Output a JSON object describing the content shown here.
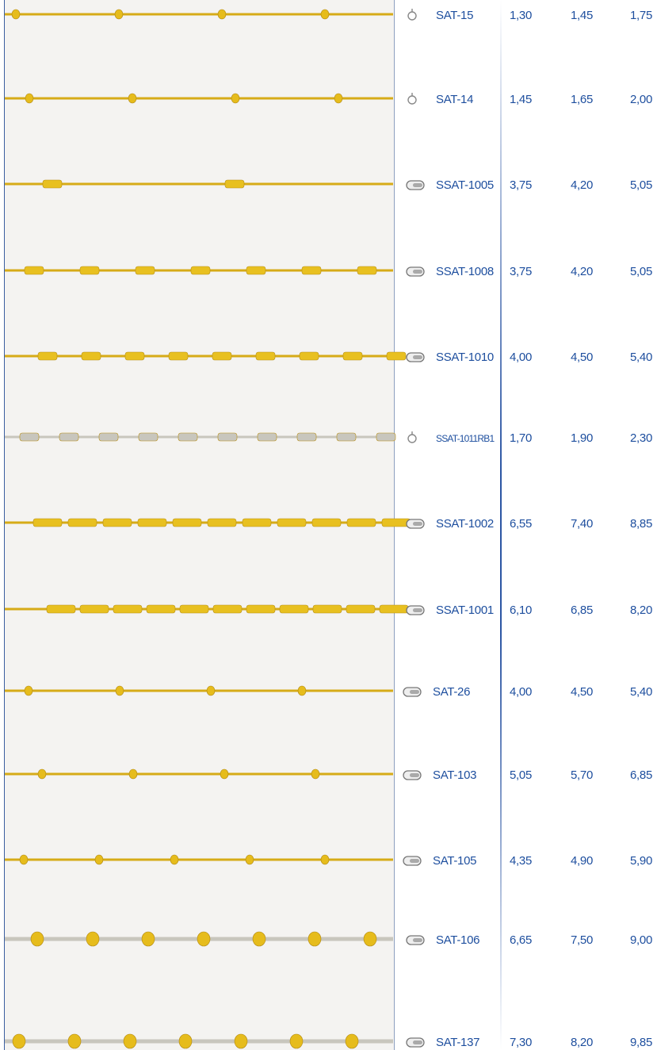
{
  "rows": [
    {
      "code": "SAT-15",
      "prices": [
        "1,30",
        "1,45",
        "1,75"
      ]
    },
    {
      "code": "SAT-14",
      "prices": [
        "1,45",
        "1,65",
        "2,00"
      ]
    },
    {
      "code": "SSAT-1005",
      "prices": [
        "3,75",
        "4,20",
        "5,05"
      ]
    },
    {
      "code": "SSAT-1008",
      "prices": [
        "3,75",
        "4,20",
        "5,05"
      ]
    },
    {
      "code": "SSAT-1010",
      "prices": [
        "4,00",
        "4,50",
        "5,40"
      ]
    },
    {
      "code": "SSAT-1011RB1",
      "prices": [
        "1,70",
        "1,90",
        "2,30"
      ]
    },
    {
      "code": "SSAT-1002",
      "prices": [
        "6,55",
        "7,40",
        "8,85"
      ]
    },
    {
      "code": "SSAT-1001",
      "prices": [
        "6,10",
        "6,85",
        "8,20"
      ]
    },
    {
      "code": "SAT-26",
      "prices": [
        "4,00",
        "4,50",
        "5,40"
      ]
    },
    {
      "code": "SAT-103",
      "prices": [
        "5,05",
        "5,70",
        "6,85"
      ]
    },
    {
      "code": "SAT-105",
      "prices": [
        "4,35",
        "4,90",
        "5,90"
      ]
    },
    {
      "code": "SAT-106",
      "prices": [
        "6,65",
        "7,50",
        "9,00"
      ]
    },
    {
      "code": "SAT-137",
      "prices": [
        "7,30",
        "8,20",
        "9,85"
      ]
    }
  ]
}
